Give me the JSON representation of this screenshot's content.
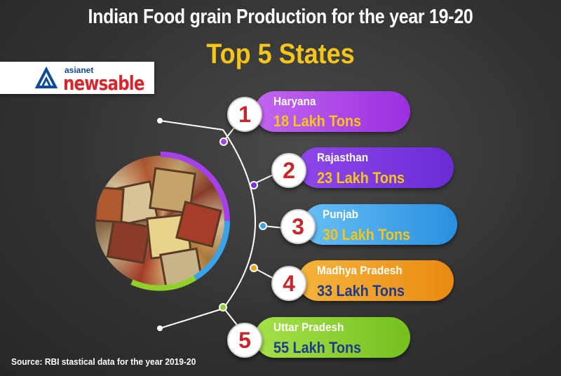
{
  "header": {
    "title": "Indian Food grain Production for the year 19-20",
    "subtitle": "Top 5 States"
  },
  "logo": {
    "top_text": "asianet",
    "main_text": "newsable"
  },
  "states": [
    {
      "rank": "1",
      "name": "Haryana",
      "value": "18 Lakh Tons",
      "color": "#a640e8",
      "value_color": "#f5c518"
    },
    {
      "rank": "2",
      "name": "Rajasthan",
      "value": "23 Lakh Tons",
      "color": "#7a32e0",
      "value_color": "#f5c518"
    },
    {
      "rank": "3",
      "name": "Punjab",
      "value": "30 Lakh Tons",
      "color": "#3aa3e8",
      "value_color": "#f5c518"
    },
    {
      "rank": "4",
      "name": "Madhya Pradesh",
      "value": "33 Lakh Tons",
      "color": "#f0a21a",
      "value_color": "#1f3a8a"
    },
    {
      "rank": "5",
      "name": "Uttar Pradesh",
      "value": "55 Lakh Tons",
      "color": "#8fd12a",
      "value_color": "#1f3a8a"
    }
  ],
  "source": "Source: RBI stastical data for the year 2019-20"
}
